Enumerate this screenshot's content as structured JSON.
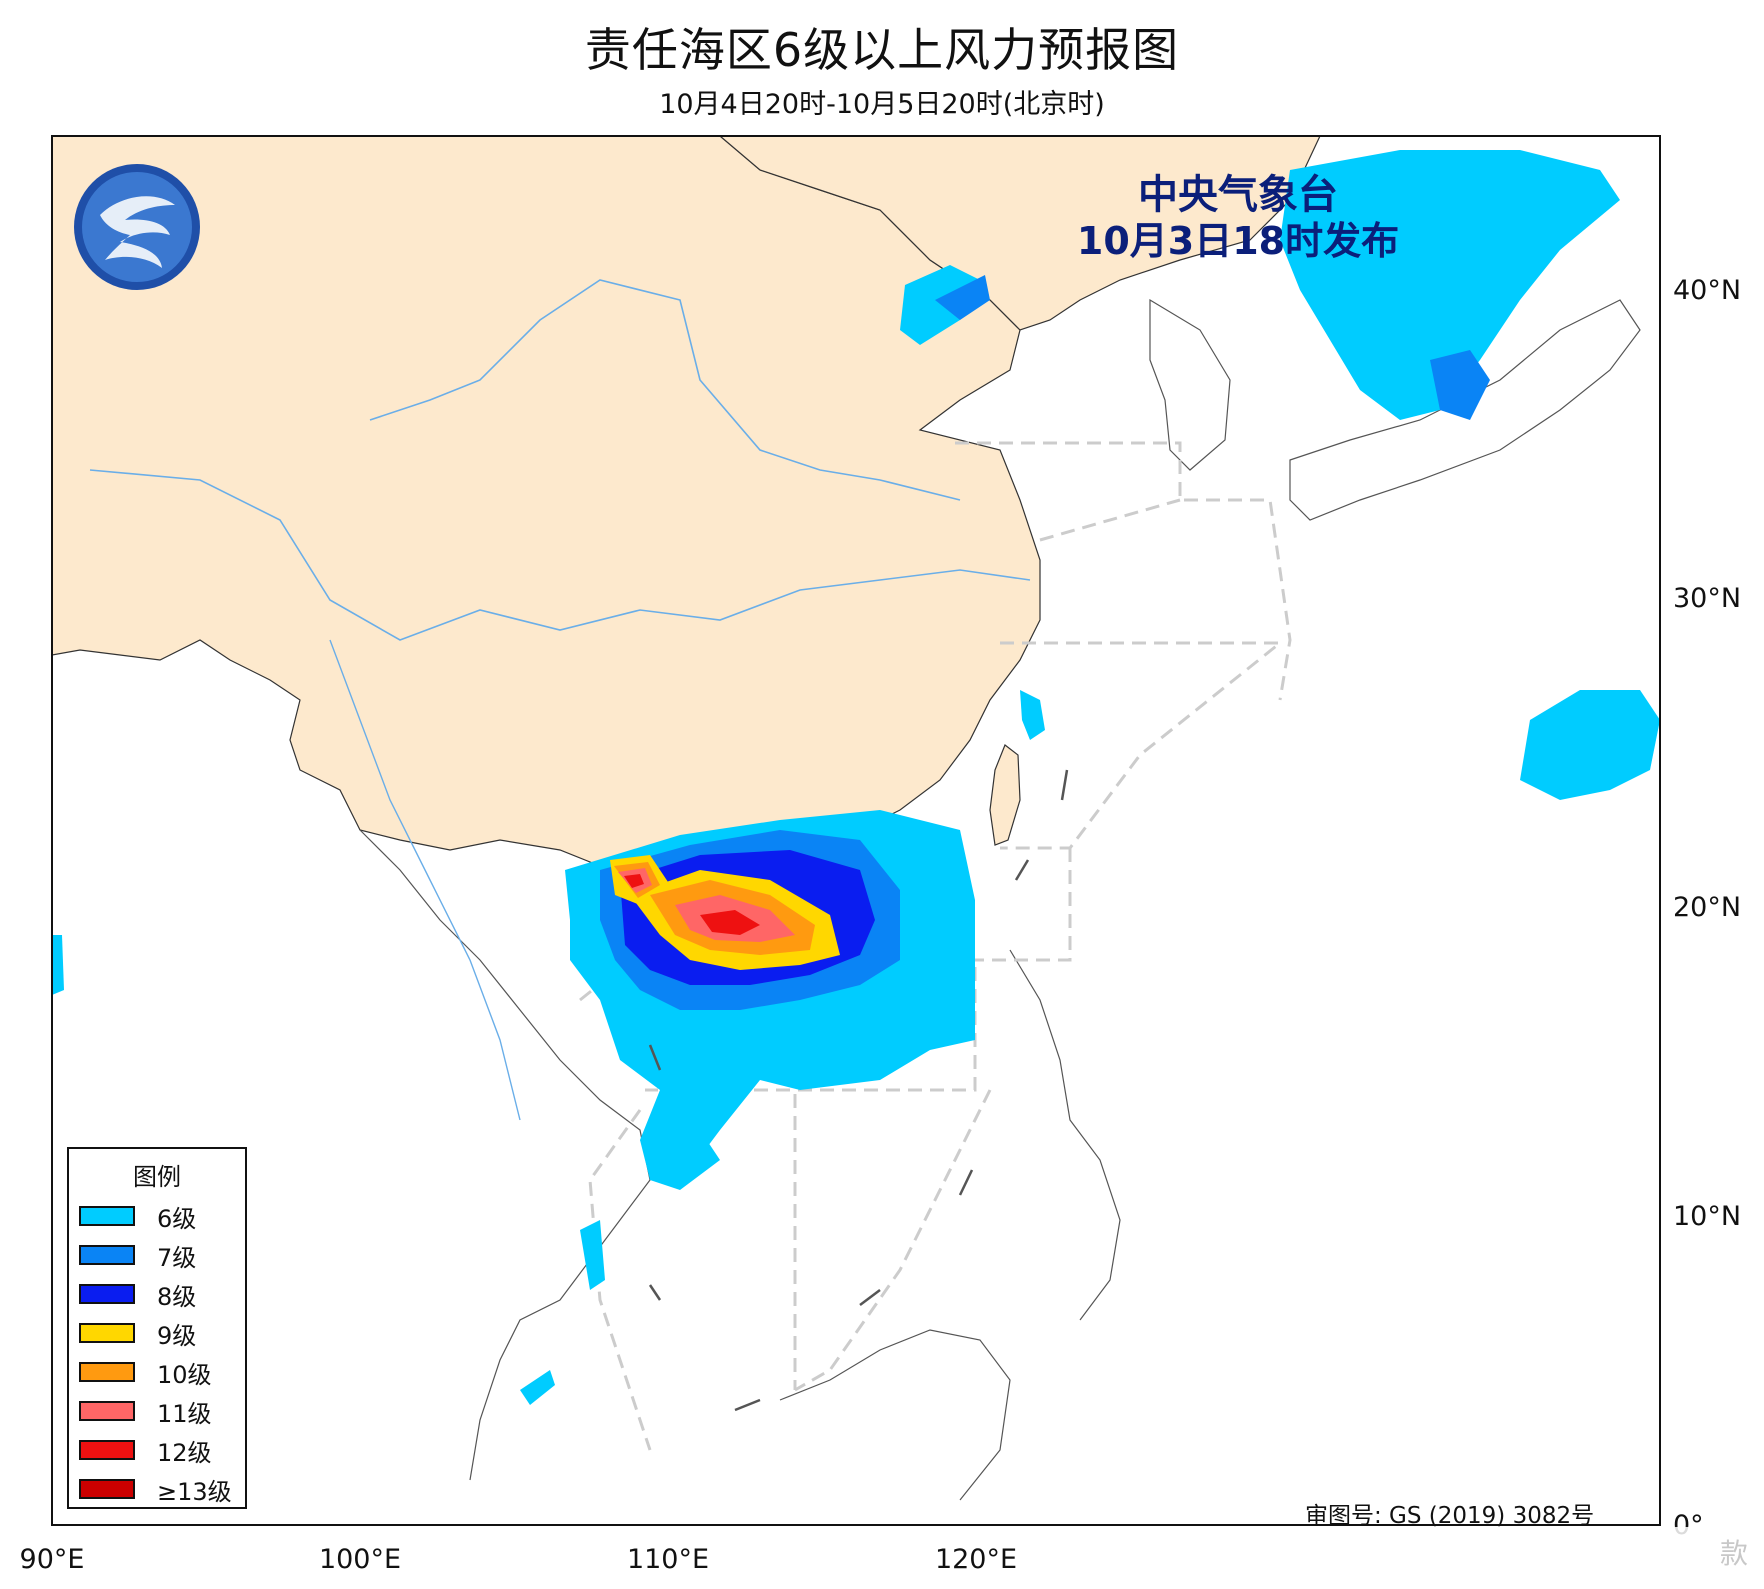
{
  "header": {
    "title": "责任海区6级以上风力预报图",
    "subtitle": "10月4日20时-10月5日20时(北京时)"
  },
  "publisher": {
    "name": "中央气象台",
    "issued": "10月3日18时发布"
  },
  "axes": {
    "x_ticks": [
      {
        "lon": 90,
        "label": "90°E"
      },
      {
        "lon": 100,
        "label": "100°E"
      },
      {
        "lon": 110,
        "label": "110°E"
      },
      {
        "lon": 120,
        "label": "120°E"
      }
    ],
    "y_ticks": [
      {
        "lat": 40,
        "label": "40°N"
      },
      {
        "lat": 30,
        "label": "30°N"
      },
      {
        "lat": 20,
        "label": "20°N"
      },
      {
        "lat": 10,
        "label": "10°N"
      },
      {
        "lat": 0,
        "label": "0°"
      }
    ]
  },
  "legend": {
    "title": "图例",
    "items": [
      {
        "label": "6级",
        "color": "#00ccff"
      },
      {
        "label": "7级",
        "color": "#0a84f5"
      },
      {
        "label": "8级",
        "color": "#0a1df0"
      },
      {
        "label": "9级",
        "color": "#ffd700"
      },
      {
        "label": "10级",
        "color": "#ff9a10"
      },
      {
        "label": "11级",
        "color": "#ff6666"
      },
      {
        "label": "12级",
        "color": "#ee1111"
      },
      {
        "label": "≥13级",
        "color": "#cc0000"
      }
    ]
  },
  "footer": {
    "approval": "审图号: GS (2019) 3082号",
    "watermark": "款"
  },
  "map_colors": {
    "land_china": "#fde9cd",
    "land_other": "#ffffff",
    "sea": "#ffffff",
    "border": "#333333",
    "river": "#6aaee8",
    "sea_zone_line": "#cccccc"
  }
}
